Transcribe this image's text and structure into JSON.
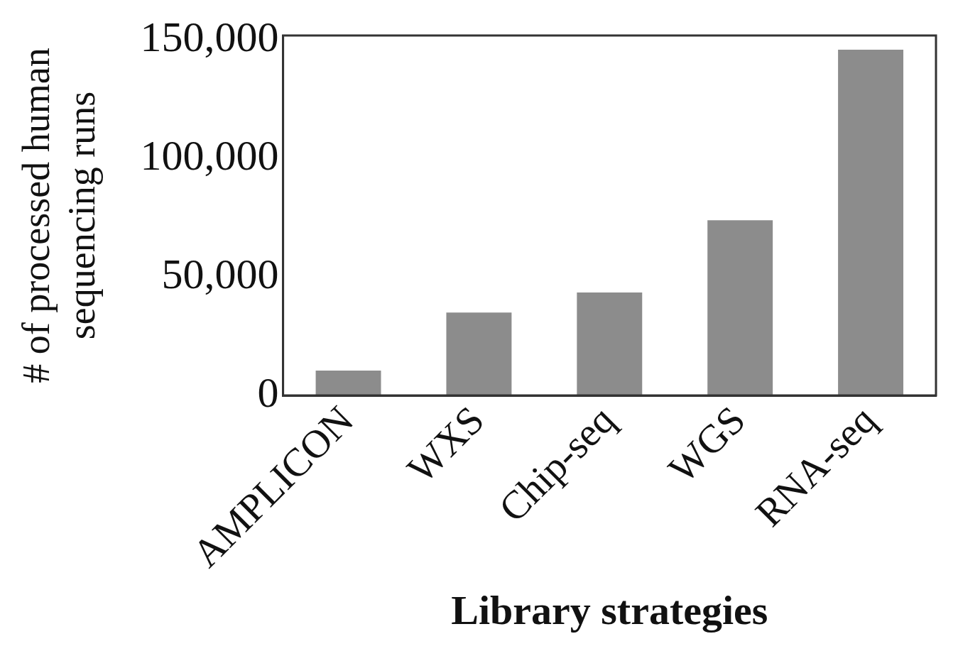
{
  "chart_data": {
    "type": "bar",
    "xlabel": "Library strategies",
    "ylabel": "# of processed human sequencing runs",
    "categories": [
      "AMPLICON",
      "WXS",
      "Chip-seq",
      "WGS",
      "RNA-seq"
    ],
    "values": [
      10500,
      35000,
      43500,
      74000,
      146000
    ],
    "color": "#8c8c8c",
    "ylim": [
      0,
      152000
    ],
    "yticks": [
      0,
      {
        "value": 50000,
        "label": "50,000"
      },
      {
        "value": 100000,
        "label": "100,000"
      },
      {
        "value": 150000,
        "label": "150,000"
      }
    ],
    "grid": false,
    "legend": false
  }
}
